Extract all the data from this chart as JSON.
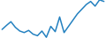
{
  "values": [
    12.5,
    13.8,
    15.0,
    13.2,
    12.0,
    11.5,
    12.2,
    11.0,
    10.5,
    12.0,
    10.0,
    13.5,
    11.8,
    16.5,
    11.5,
    13.5,
    15.5,
    17.5,
    19.0,
    20.5,
    21.5,
    20.0,
    22.0,
    21.5
  ],
  "line_color": "#2481c0",
  "linewidth": 1.1,
  "background_color": "#ffffff"
}
